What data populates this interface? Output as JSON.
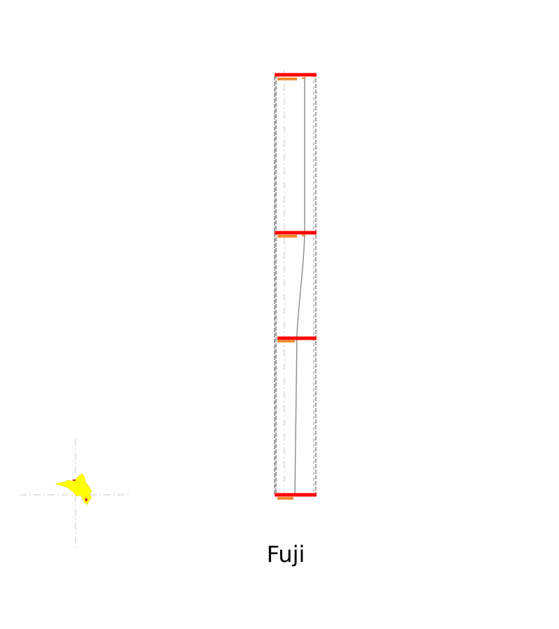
{
  "caption": "Fuji",
  "colors": {
    "frame_outline": "#7a7a7a",
    "slab_bar": "#ff0000",
    "slab_accent": "#f28b30",
    "guide_line": "#c8c8c8",
    "map_fill": "#ffff00",
    "map_marker": "#cc2222"
  },
  "structure": {
    "columns": 2,
    "levels": 4
  }
}
